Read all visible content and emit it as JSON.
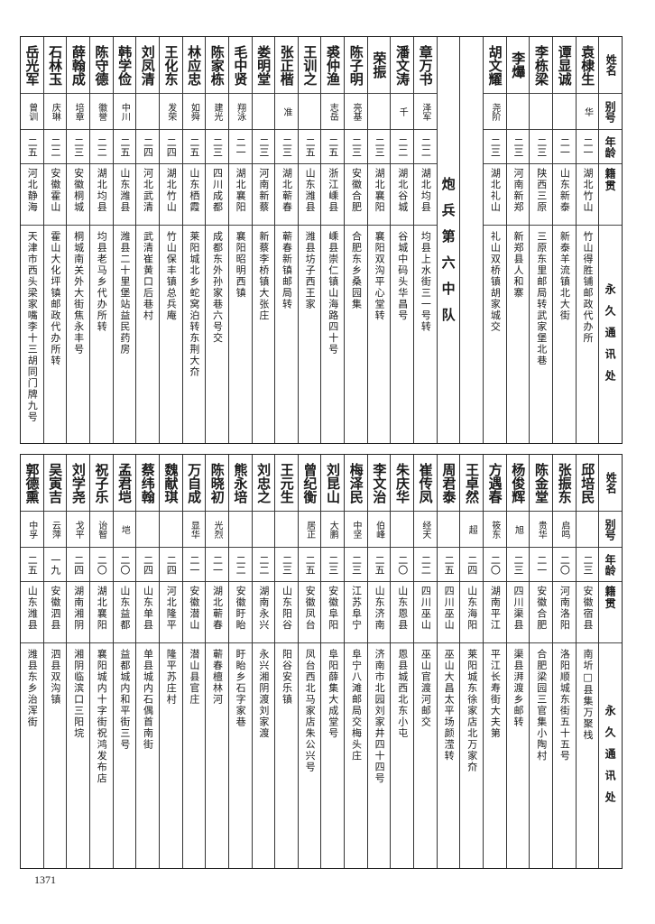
{
  "headers": {
    "name": "姓名",
    "alias": "别号",
    "age": "年龄",
    "origin": "籍贯",
    "address": "永久通讯处"
  },
  "top": {
    "group_a": [
      {
        "name": "袁棣生",
        "alias": "华",
        "age": "二一",
        "origin": "湖北竹山",
        "address": "竹山得胜铺邮政代办所"
      },
      {
        "name": "谭显诚",
        "alias": "",
        "age": "二一",
        "origin": "山东新泰",
        "address": "新泰羊流镇北大街"
      },
      {
        "name": "李栋梁",
        "alias": "",
        "age": "二三",
        "origin": "陕西三原",
        "address": "三原东里邮局转武家堡北巷"
      },
      {
        "name": "李爗",
        "alias": "",
        "age": "二三",
        "origin": "河南新郑",
        "address": "新郑县人和寨"
      },
      {
        "name": "胡文耀",
        "alias": "尧阶",
        "age": "二三",
        "origin": "湖北礼山",
        "address": "礼山双桥镇胡家城交"
      }
    ],
    "unit_label": "炮兵第六中队",
    "group_b": [
      {
        "name": "章万书",
        "alias": "泽军",
        "age": "二二",
        "origin": "湖北均县",
        "address": "均县上水街三一号转"
      },
      {
        "name": "潘文涛",
        "alias": "千",
        "age": "二二",
        "origin": "湖北谷城",
        "address": "谷城中码头华昌号"
      },
      {
        "name": "荣振",
        "alias": "",
        "age": "二三",
        "origin": "湖北襄阳",
        "address": "襄阳双沟平心堂转"
      },
      {
        "name": "陈子明",
        "alias": "亮基",
        "age": "二三",
        "origin": "安徽合肥",
        "address": "合肥东乡桑园集"
      },
      {
        "name": "裘仲渔",
        "alias": "志岳",
        "age": "二五",
        "origin": "浙江嵊县",
        "address": "嵊县崇仁镇山海路四十号"
      },
      {
        "name": "王训之",
        "alias": "",
        "age": "二五",
        "origin": "山东潍县",
        "address": "潍县坊子西王家"
      },
      {
        "name": "张正楷",
        "alias": "准",
        "age": "二三",
        "origin": "湖北蕲春",
        "address": "蕲春新镇邮局转"
      },
      {
        "name": "娄明堂",
        "alias": "",
        "age": "二三",
        "origin": "河南新蔡",
        "address": "新蔡李桥镇大张庄"
      },
      {
        "name": "毛中贤",
        "alias": "翔泳",
        "age": "二一",
        "origin": "湖北襄阳",
        "address": "襄阳昭明西镇"
      },
      {
        "name": "陈家栋",
        "alias": "建光",
        "age": "二三",
        "origin": "四川成都",
        "address": "成都东外孙家巷六号交"
      },
      {
        "name": "林应忠",
        "alias": "如舜",
        "age": "二五",
        "origin": "山东栖霞",
        "address": "莱阳城北乡蛇窝泊转东荆大夼"
      },
      {
        "name": "王化东",
        "alias": "发荣",
        "age": "二四",
        "origin": "湖北竹山",
        "address": "竹山保丰镇总兵庵"
      },
      {
        "name": "刘凤清",
        "alias": "",
        "age": "二四",
        "origin": "河北武清",
        "address": "武清崔黄口后巷村"
      },
      {
        "name": "韩学俭",
        "alias": "中川",
        "age": "二五",
        "origin": "山东潍县",
        "address": "潍县二十里堡站益民药房"
      },
      {
        "name": "陈守德",
        "alias": "徽誉",
        "age": "二二",
        "origin": "湖北均县",
        "address": "均县老马乡代办所转"
      },
      {
        "name": "薛翰成",
        "alias": "培章",
        "age": "二三",
        "origin": "安徽桐城",
        "address": "桐城南关外大街焦永丰号"
      },
      {
        "name": "石林玉",
        "alias": "庆琳",
        "age": "二二",
        "origin": "安徽霍山",
        "address": "霍山大化坪镇邮政代办所转"
      },
      {
        "name": "岳光军",
        "alias": "曾训",
        "age": "二五",
        "origin": "河北静海",
        "address": "天津市西头梁家嘴李十三胡同门牌九号"
      }
    ]
  },
  "bottom": [
    {
      "name": "邱培民",
      "alias": "",
      "age": "二三",
      "origin": "安徽宿县",
      "address": "南圻□县集万聚栈"
    },
    {
      "name": "张振东",
      "alias": "启鸣",
      "age": "二〇",
      "origin": "河南洛阳",
      "address": "洛阳顺城东街五十五号"
    },
    {
      "name": "陈金堂",
      "alias": "贵华",
      "age": "二一",
      "origin": "安徽合肥",
      "address": "合肥梁园三官集小陶村"
    },
    {
      "name": "杨俊辉",
      "alias": "旭",
      "age": "二三",
      "origin": "四川渠县",
      "address": "渠县湃渡乡邮转"
    },
    {
      "name": "方遇春",
      "alias": "筱东",
      "age": "二〇",
      "origin": "湖南平江",
      "address": "平江长寿街大夫第"
    },
    {
      "name": "王卓然",
      "alias": "超",
      "age": "二四",
      "origin": "山东海阳",
      "address": "莱阳城东徐家店北万家夼"
    },
    {
      "name": "周君泰",
      "alias": "",
      "age": "二五",
      "origin": "四川巫山",
      "address": "巫山大昌太平场颜滢转"
    },
    {
      "name": "崔传凤",
      "alias": "经天",
      "age": "二二",
      "origin": "四川巫山",
      "address": "巫山官渡河邮交"
    },
    {
      "name": "朱庆华",
      "alias": "",
      "age": "二〇",
      "origin": "山东恩县",
      "address": "恩县城西北东小屯"
    },
    {
      "name": "李文治",
      "alias": "伯峰",
      "age": "二五",
      "origin": "山东济南",
      "address": "济南市北园刘家井四十四号"
    },
    {
      "name": "梅泽民",
      "alias": "中坚",
      "age": "二三",
      "origin": "江苏阜宁",
      "address": "阜宁八滩邮局交梅头庄"
    },
    {
      "name": "刘昆山",
      "alias": "大鹏",
      "age": "二三",
      "origin": "安徽阜阳",
      "address": "阜阳薛集大成堂号"
    },
    {
      "name": "曾纪衡",
      "alias": "居正",
      "age": "二五",
      "origin": "安徽凤台",
      "address": "凤台西北马家店朱公兴号"
    },
    {
      "name": "王元生",
      "alias": "",
      "age": "二三",
      "origin": "山东阳谷",
      "address": "阳谷安乐镇"
    },
    {
      "name": "刘忠之",
      "alias": "",
      "age": "二二",
      "origin": "湖南永兴",
      "address": "永兴湘阴渡刘家渡"
    },
    {
      "name": "熊永培",
      "alias": "",
      "age": "二二",
      "origin": "安徽盱眙",
      "address": "盱眙乡石字家巷"
    },
    {
      "name": "陈晓初",
      "alias": "光烈",
      "age": "二一",
      "origin": "湖北蕲春",
      "address": "蕲春檀林河"
    },
    {
      "name": "万自成",
      "alias": "显华",
      "age": "二一",
      "origin": "安徽潜山",
      "address": "潜山县官庄"
    },
    {
      "name": "魏献琪",
      "alias": "",
      "age": "二四",
      "origin": "河北隆平",
      "address": "隆平苏庄村"
    },
    {
      "name": "蔡纬翰",
      "alias": "",
      "age": "二四",
      "origin": "山东单县",
      "address": "单县城内石偶首南街"
    },
    {
      "name": "孟君垲",
      "alias": "垲",
      "age": "二〇",
      "origin": "山东益都",
      "address": "益都城内和平街三号"
    },
    {
      "name": "祝子乐",
      "alias": "诒智",
      "age": "二〇",
      "origin": "湖北襄阳",
      "address": "襄阳城内十字街祝鸿发布店"
    },
    {
      "name": "刘学尧",
      "alias": "戈平",
      "age": "二四",
      "origin": "湖南湘阴",
      "address": "湘阴临滨口三阳垸"
    },
    {
      "name": "吴寅吉",
      "alias": "云萍",
      "age": "一九",
      "origin": "安徽泗县",
      "address": "泗县双沟镇"
    },
    {
      "name": "郭德熏",
      "alias": "中孚",
      "age": "二五",
      "origin": "山东潍县",
      "address": "潍县东乡治浑街"
    }
  ],
  "page_number": "1371"
}
